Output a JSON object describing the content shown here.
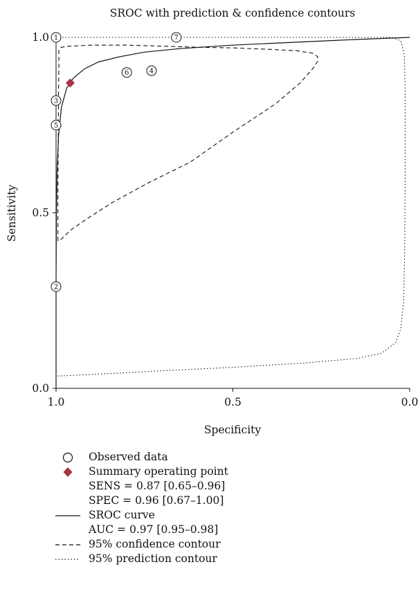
{
  "chart_data": {
    "type": "scatter",
    "title": "SROC with prediction & confidence contours",
    "xlabel": "Specificity",
    "ylabel": "Sensitivity",
    "x_reversed": true,
    "xlim": [
      1.0,
      0.0
    ],
    "ylim": [
      0.0,
      1.0
    ],
    "x_ticks": [
      1.0,
      0.5,
      0.0
    ],
    "x_tick_labels": [
      "1.0",
      "0.5",
      "0.0"
    ],
    "y_ticks": [
      0.0,
      0.5,
      1.0
    ],
    "y_tick_labels": [
      "0.0",
      "0.5",
      "1.0"
    ],
    "grid": false,
    "legend_placement": "below",
    "observed_data": [
      {
        "label": "1",
        "specificity": 1.0,
        "sensitivity": 1.0
      },
      {
        "label": "2",
        "specificity": 1.0,
        "sensitivity": 0.29
      },
      {
        "label": "3",
        "specificity": 1.0,
        "sensitivity": 0.82
      },
      {
        "label": "4",
        "specificity": 0.73,
        "sensitivity": 0.905
      },
      {
        "label": "5",
        "specificity": 1.0,
        "sensitivity": 0.75
      },
      {
        "label": "6",
        "specificity": 0.8,
        "sensitivity": 0.9
      },
      {
        "label": "7",
        "specificity": 0.66,
        "sensitivity": 1.0
      }
    ],
    "summary_point": {
      "specificity": 0.96,
      "sensitivity": 0.87,
      "color": "#a83246"
    },
    "sroc_curve": [
      [
        1.0,
        0.0
      ],
      [
        1.0,
        0.3
      ],
      [
        0.999,
        0.5
      ],
      [
        0.997,
        0.62
      ],
      [
        0.993,
        0.72
      ],
      [
        0.985,
        0.8
      ],
      [
        0.97,
        0.855
      ],
      [
        0.95,
        0.885
      ],
      [
        0.92,
        0.91
      ],
      [
        0.88,
        0.93
      ],
      [
        0.82,
        0.945
      ],
      [
        0.75,
        0.958
      ],
      [
        0.65,
        0.968
      ],
      [
        0.5,
        0.978
      ],
      [
        0.35,
        0.985
      ],
      [
        0.2,
        0.992
      ],
      [
        0.1,
        0.996
      ],
      [
        0.0,
        1.0
      ]
    ],
    "confidence_contour": [
      [
        0.995,
        0.42
      ],
      [
        0.995,
        0.55
      ],
      [
        0.994,
        0.7
      ],
      [
        0.993,
        0.85
      ],
      [
        0.992,
        0.93
      ],
      [
        0.992,
        0.965
      ],
      [
        0.985,
        0.972
      ],
      [
        0.96,
        0.975
      ],
      [
        0.9,
        0.978
      ],
      [
        0.8,
        0.978
      ],
      [
        0.7,
        0.975
      ],
      [
        0.6,
        0.972
      ],
      [
        0.5,
        0.97
      ],
      [
        0.4,
        0.966
      ],
      [
        0.32,
        0.962
      ],
      [
        0.275,
        0.955
      ],
      [
        0.26,
        0.945
      ],
      [
        0.26,
        0.932
      ],
      [
        0.275,
        0.91
      ],
      [
        0.31,
        0.87
      ],
      [
        0.38,
        0.81
      ],
      [
        0.5,
        0.73
      ],
      [
        0.62,
        0.645
      ],
      [
        0.74,
        0.585
      ],
      [
        0.84,
        0.53
      ],
      [
        0.91,
        0.485
      ],
      [
        0.96,
        0.45
      ],
      [
        0.985,
        0.425
      ],
      [
        0.995,
        0.42
      ]
    ],
    "prediction_contour": [
      [
        1.0,
        1.0
      ],
      [
        0.8,
        1.0
      ],
      [
        0.6,
        1.0
      ],
      [
        0.4,
        1.0
      ],
      [
        0.2,
        1.0
      ],
      [
        0.05,
        1.0
      ],
      [
        0.025,
        0.99
      ],
      [
        0.015,
        0.95
      ],
      [
        0.013,
        0.85
      ],
      [
        0.013,
        0.6
      ],
      [
        0.014,
        0.4
      ],
      [
        0.017,
        0.25
      ],
      [
        0.025,
        0.17
      ],
      [
        0.04,
        0.13
      ],
      [
        0.08,
        0.1
      ],
      [
        0.15,
        0.085
      ],
      [
        0.3,
        0.072
      ],
      [
        0.5,
        0.06
      ],
      [
        0.7,
        0.05
      ],
      [
        0.85,
        0.042
      ],
      [
        1.0,
        0.035
      ]
    ],
    "series": [
      {
        "name": "Observed data"
      },
      {
        "name": "Summary operating point"
      },
      {
        "name": "SROC curve"
      },
      {
        "name": "95% confidence contour"
      },
      {
        "name": "95% prediction contour"
      }
    ]
  },
  "legend": {
    "observed": "Observed data",
    "summary": "Summary operating point",
    "sens": "SENS = 0.87 [0.65–0.96]",
    "spec": "SPEC = 0.96 [0.67–1.00]",
    "sroc": "SROC curve",
    "auc": "AUC = 0.97 [0.95–0.98]",
    "confidence": "95% confidence contour",
    "prediction": "95% prediction contour"
  }
}
